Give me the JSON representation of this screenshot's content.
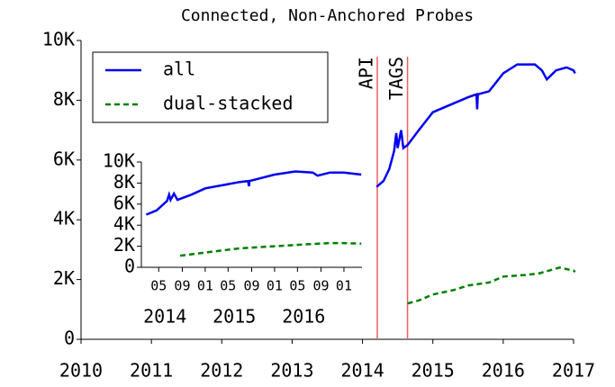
{
  "chart_data": [
    {
      "type": "line",
      "title": "Connected, Non-Anchored Probes",
      "xlim": [
        2010,
        2017
      ],
      "xticks": [
        2010,
        2011,
        2012,
        2013,
        2014,
        2015,
        2016,
        2017
      ],
      "ylim": [
        0,
        10000
      ],
      "yticks": [
        0,
        {
          "value": 2000,
          "label": "2K"
        },
        {
          "value": 4000,
          "label": "4K"
        },
        {
          "value": 6000,
          "label": "6K"
        },
        {
          "value": 8000,
          "label": "8K"
        },
        {
          "value": 10000,
          "label": "10K"
        }
      ],
      "legend": "upper left",
      "annotations": [
        {
          "x": 2014.21,
          "text": "API",
          "color": "#f06060"
        },
        {
          "x": 2014.64,
          "text": "TAGS",
          "color": "#f06060"
        }
      ],
      "series": [
        {
          "name": "all",
          "color": "#0000ee",
          "style": "solid",
          "x": [
            2014.2,
            2014.3,
            2014.38,
            2014.45,
            2014.48,
            2014.5,
            2014.55,
            2014.58,
            2014.64,
            2014.8,
            2015.0,
            2015.3,
            2015.5,
            2015.62,
            2015.63,
            2015.64,
            2015.8,
            2016.0,
            2016.2,
            2016.45,
            2016.55,
            2016.62,
            2016.75,
            2016.9,
            2017.0,
            2017.02
          ],
          "values": [
            5100,
            5300,
            5700,
            6300,
            6900,
            6400,
            7000,
            6400,
            6500,
            7000,
            7600,
            7900,
            8100,
            8200,
            7700,
            8200,
            8300,
            8900,
            9200,
            9200,
            9000,
            8700,
            9000,
            9100,
            9000,
            8900
          ]
        },
        {
          "name": "dual-stacked",
          "color": "#008000",
          "style": "dashed",
          "x": [
            2014.64,
            2014.8,
            2015.0,
            2015.3,
            2015.5,
            2015.8,
            2016.0,
            2016.3,
            2016.5,
            2016.8,
            2016.9,
            2017.0,
            2017.02
          ],
          "values": [
            1200,
            1300,
            1500,
            1650,
            1800,
            1900,
            2100,
            2150,
            2200,
            2400,
            2350,
            2300,
            2250
          ]
        }
      ]
    },
    {
      "type": "line",
      "xlim": [
        2014.08,
        2017.26
      ],
      "xticks": [
        {
          "value": 2014.33,
          "label": "05"
        },
        {
          "value": 2014.67,
          "label": "09"
        },
        {
          "value": 2015.0,
          "label": "01"
        },
        {
          "value": 2015.33,
          "label": "05"
        },
        {
          "value": 2015.67,
          "label": "09"
        },
        {
          "value": 2016.0,
          "label": "01"
        },
        {
          "value": 2016.33,
          "label": "05"
        },
        {
          "value": 2016.67,
          "label": "09"
        },
        {
          "value": 2017.0,
          "label": "01"
        }
      ],
      "year_labels": [
        {
          "value": 2014.42,
          "label": "2014"
        },
        {
          "value": 2015.42,
          "label": "2015"
        },
        {
          "value": 2016.42,
          "label": "2016"
        }
      ],
      "ylim": [
        0,
        10000
      ],
      "yticks": [
        0,
        {
          "value": 2000,
          "label": "2K"
        },
        {
          "value": 4000,
          "label": "4K"
        },
        {
          "value": 6000,
          "label": "6K"
        },
        {
          "value": 8000,
          "label": "8K"
        },
        {
          "value": 10000,
          "label": "10K"
        }
      ],
      "series": [
        {
          "name": "all",
          "color": "#0000ee",
          "style": "solid",
          "x": [
            2014.15,
            2014.3,
            2014.45,
            2014.48,
            2014.5,
            2014.55,
            2014.6,
            2014.8,
            2015.0,
            2015.5,
            2015.62,
            2015.63,
            2015.64,
            2016.0,
            2016.3,
            2016.55,
            2016.62,
            2016.8,
            2017.0,
            2017.25
          ],
          "values": [
            5000,
            5400,
            6300,
            6900,
            6400,
            7000,
            6400,
            6900,
            7500,
            8100,
            8200,
            7700,
            8200,
            8800,
            9100,
            9000,
            8700,
            9000,
            9000,
            8800
          ]
        },
        {
          "name": "dual-stacked",
          "color": "#008000",
          "style": "dashed",
          "x": [
            2014.64,
            2015.0,
            2015.5,
            2016.0,
            2016.5,
            2016.8,
            2017.0,
            2017.25
          ],
          "values": [
            1100,
            1400,
            1800,
            2000,
            2200,
            2300,
            2300,
            2250
          ]
        }
      ]
    }
  ]
}
